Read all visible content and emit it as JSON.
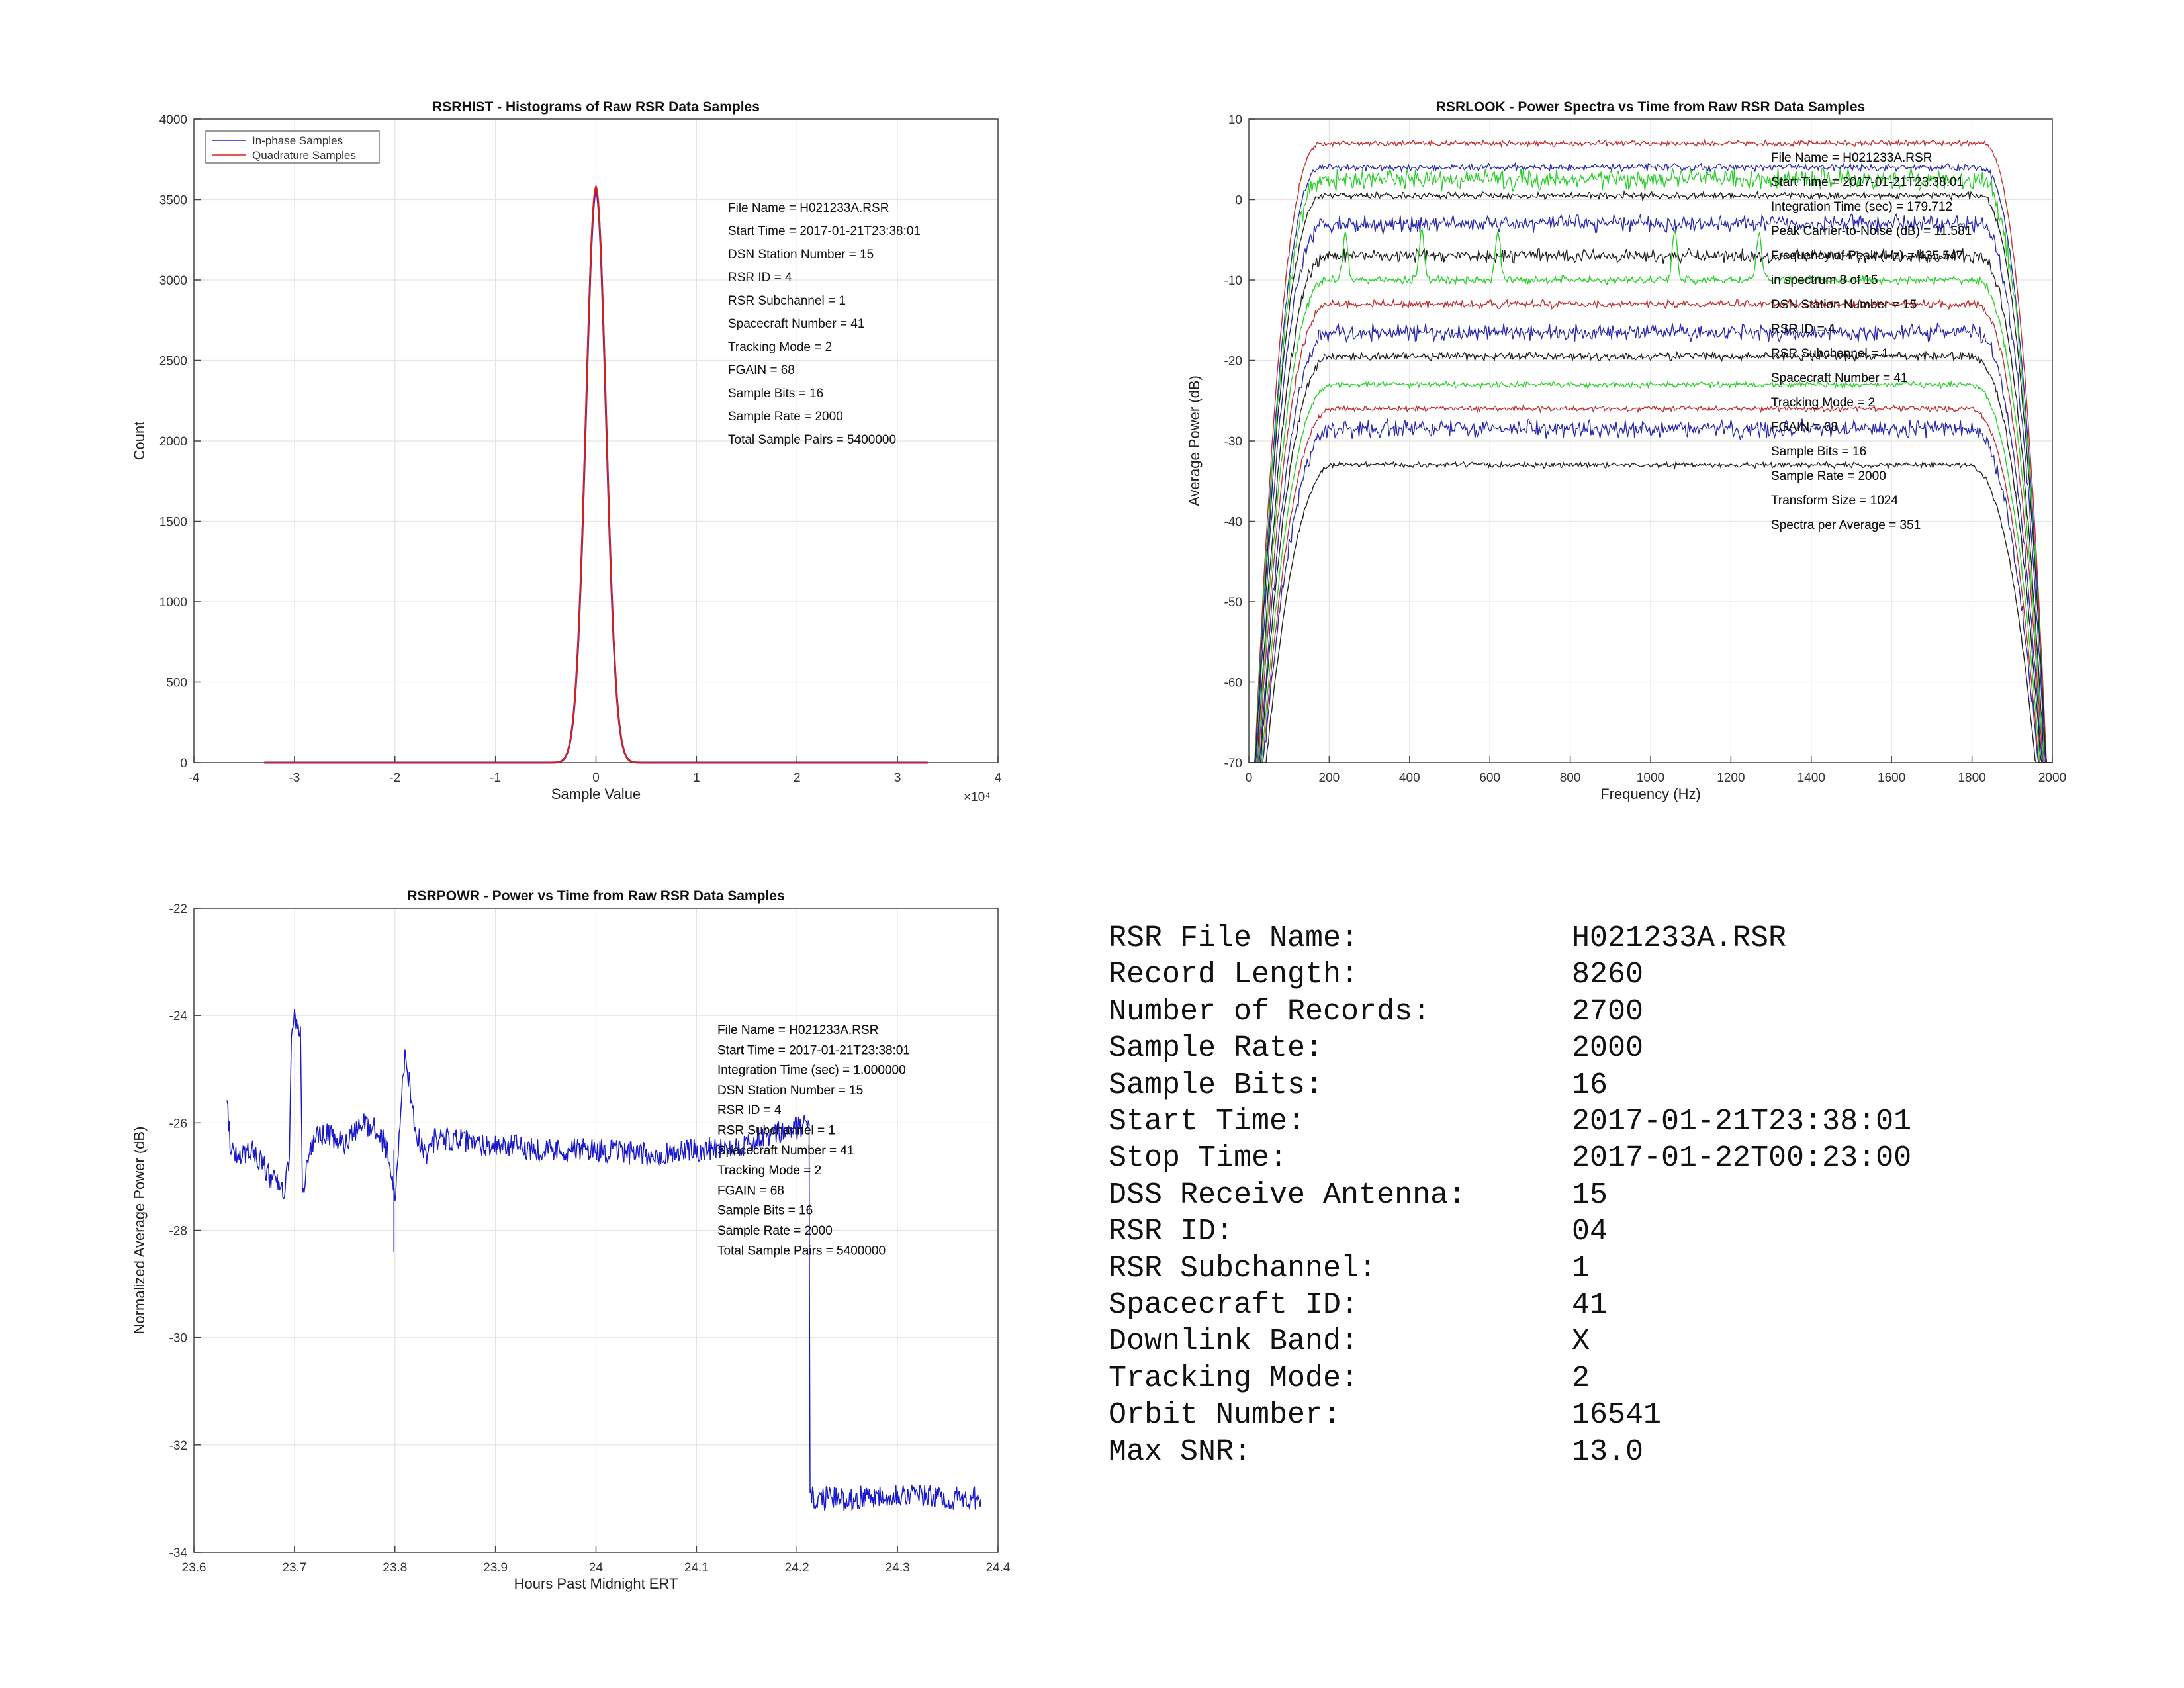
{
  "chart_data": [
    {
      "id": "rsrhist",
      "type": "line",
      "title": "RSRHIST - Histograms of Raw RSR Data Samples",
      "xlabel": "Sample Value",
      "ylabel": "Count",
      "x_multiplier": "×10⁴",
      "xlim": [
        -4,
        4
      ],
      "ylim": [
        0,
        4000
      ],
      "xticks": [
        -4,
        -3,
        -2,
        -1,
        0,
        1,
        2,
        3,
        4
      ],
      "yticks": [
        0,
        500,
        1000,
        1500,
        2000,
        2500,
        3000,
        3500,
        4000
      ],
      "grid": true,
      "legend": {
        "position": "top-left",
        "entries": [
          "In-phase Samples",
          "Quadrature Samples"
        ]
      },
      "series": [
        {
          "name": "In-phase Samples",
          "color": "#1f1fbf",
          "shape": "gaussian",
          "peak_x": 0,
          "peak_y": 3560,
          "sigma": 0.1
        },
        {
          "name": "Quadrature Samples",
          "color": "#d62020",
          "shape": "gaussian",
          "peak_x": 0,
          "peak_y": 3580,
          "sigma": 0.1
        }
      ],
      "annotations": [
        "File Name = H021233A.RSR",
        "Start Time = 2017-01-21T23:38:01",
        "DSN Station Number = 15",
        "RSR ID = 4",
        "RSR Subchannel = 1",
        "Spacecraft Number = 41",
        "Tracking Mode = 2",
        "FGAIN = 68",
        "Sample Bits = 16",
        "Sample Rate = 2000",
        "Total Sample Pairs = 5400000"
      ]
    },
    {
      "id": "rsrlook",
      "type": "line",
      "title": "RSRLOOK - Power Spectra vs Time from Raw RSR Data Samples",
      "xlabel": "Frequency (Hz)",
      "ylabel": "Average Power (dB)",
      "xlim": [
        0,
        2000
      ],
      "ylim": [
        -70,
        10
      ],
      "xticks": [
        0,
        200,
        400,
        600,
        800,
        1000,
        1200,
        1400,
        1600,
        1800,
        2000
      ],
      "yticks": [
        -70,
        -60,
        -50,
        -40,
        -30,
        -20,
        -10,
        0,
        10
      ],
      "grid": true,
      "spectra": [
        {
          "level": 7,
          "color": "#c03030",
          "ripple": 0.4
        },
        {
          "level": 4,
          "color": "#2a2ab0",
          "ripple": 0.5
        },
        {
          "level": 2.5,
          "color": "#2ad02a",
          "ripple": 1.5
        },
        {
          "level": 0.5,
          "color": "#222222",
          "ripple": 0.5
        },
        {
          "level": -3,
          "color": "#2a2ab0",
          "ripple": 1.2
        },
        {
          "level": -7,
          "color": "#222222",
          "ripple": 1.0
        },
        {
          "level": -10,
          "color": "#2ad02a",
          "ripple": 0.6
        },
        {
          "level": -13,
          "color": "#c03030",
          "ripple": 0.6
        },
        {
          "level": -16.5,
          "color": "#2a2ab0",
          "ripple": 1.2
        },
        {
          "level": -19.5,
          "color": "#222222",
          "ripple": 0.6
        },
        {
          "level": -23,
          "color": "#2ad02a",
          "ripple": 0.4
        },
        {
          "level": -26,
          "color": "#c03030",
          "ripple": 0.4
        },
        {
          "level": -28.5,
          "color": "#2a2ab0",
          "ripple": 1.3
        },
        {
          "level": -33,
          "color": "#222222",
          "ripple": 0.4
        }
      ],
      "annotations": [
        "File Name = H021233A.RSR",
        "Start Time = 2017-01-21T23:38:01",
        "Integration Time (sec) =   179.712",
        "Peak Carrier-to-Noise (dB) = 11.581",
        "Frequency of Peak (Hz) =  435.547",
        "  in spectrum  8  of  15",
        "DSN Station Number = 15",
        "RSR ID = 4",
        "RSR Subchannel = 1",
        "Spacecraft Number = 41",
        "Tracking Mode = 2",
        "FGAIN = 68",
        "Sample Bits = 16",
        "Sample Rate = 2000",
        "Transform Size = 1024",
        "Spectra per Average = 351"
      ]
    },
    {
      "id": "rsrpowr",
      "type": "line",
      "title": "RSRPOWR - Power vs Time from Raw RSR Data Samples",
      "xlabel": "Hours Past Midnight ERT",
      "ylabel": "Normalized Average Power (dB)",
      "xlim": [
        23.6,
        24.4
      ],
      "ylim": [
        -34,
        -22
      ],
      "xticks": [
        23.6,
        23.7,
        23.8,
        23.9,
        24,
        24.1,
        24.2,
        24.3,
        24.4
      ],
      "yticks": [
        -34,
        -32,
        -30,
        -28,
        -26,
        -24,
        -22
      ],
      "grid": true,
      "series": [
        {
          "color": "#1a1acc",
          "points": [
            [
              23.633,
              -25.5
            ],
            [
              23.636,
              -26.4
            ],
            [
              23.645,
              -26.6
            ],
            [
              23.66,
              -26.5
            ],
            [
              23.675,
              -27.0
            ],
            [
              23.69,
              -27.3
            ],
            [
              23.695,
              -26.6
            ],
            [
              23.697,
              -24.2
            ],
            [
              23.7,
              -24.1
            ],
            [
              23.703,
              -24.3
            ],
            [
              23.706,
              -24.2
            ],
            [
              23.708,
              -27.4
            ],
            [
              23.712,
              -26.8
            ],
            [
              23.72,
              -26.3
            ],
            [
              23.73,
              -26.2
            ],
            [
              23.74,
              -26.3
            ],
            [
              23.75,
              -26.4
            ],
            [
              23.76,
              -26.2
            ],
            [
              23.77,
              -26.0
            ],
            [
              23.78,
              -26.1
            ],
            [
              23.79,
              -26.4
            ],
            [
              23.795,
              -26.7
            ],
            [
              23.8,
              -27.5
            ],
            [
              23.805,
              -26.0
            ],
            [
              23.81,
              -24.7
            ],
            [
              23.815,
              -25.3
            ],
            [
              23.82,
              -26.1
            ],
            [
              23.83,
              -26.6
            ],
            [
              23.84,
              -26.3
            ],
            [
              23.86,
              -26.3
            ],
            [
              23.88,
              -26.4
            ],
            [
              23.9,
              -26.4
            ],
            [
              23.95,
              -26.5
            ],
            [
              24.0,
              -26.5
            ],
            [
              24.05,
              -26.6
            ],
            [
              24.1,
              -26.5
            ],
            [
              24.15,
              -26.4
            ],
            [
              24.18,
              -26.2
            ],
            [
              24.2,
              -26.1
            ],
            [
              24.212,
              -26.0
            ],
            [
              24.213,
              -33.0
            ],
            [
              24.25,
              -33.0
            ],
            [
              24.3,
              -32.9
            ],
            [
              24.35,
              -33.0
            ],
            [
              24.383,
              -33.0
            ]
          ]
        }
      ],
      "annotations": [
        "File Name = H021233A.RSR",
        "Start Time = 2017-01-21T23:38:01",
        "Integration Time (sec) = 1.000000",
        "DSN Station Number = 15",
        "RSR ID = 4",
        "RSR Subchannel = 1",
        "Spacecraft Number = 41",
        "Tracking Mode = 2",
        "FGAIN = 68",
        "Sample Bits = 16",
        "Sample Rate = 2000",
        "Total Sample Pairs = 5400000"
      ]
    }
  ],
  "summary": [
    {
      "key": "RSR File Name:",
      "value": "H021233A.RSR"
    },
    {
      "key": "Record Length:",
      "value": "8260"
    },
    {
      "key": "Number of Records:",
      "value": "2700"
    },
    {
      "key": "Sample Rate:",
      "value": "2000"
    },
    {
      "key": "Sample Bits:",
      "value": "16"
    },
    {
      "key": "Start Time:",
      "value": "2017-01-21T23:38:01"
    },
    {
      "key": "Stop Time:",
      "value": "2017-01-22T00:23:00"
    },
    {
      "key": "DSS Receive Antenna:",
      "value": "15"
    },
    {
      "key": "RSR ID:",
      "value": "04"
    },
    {
      "key": "RSR Subchannel:",
      "value": "1"
    },
    {
      "key": "Spacecraft ID:",
      "value": "41"
    },
    {
      "key": "Downlink Band:",
      "value": "X"
    },
    {
      "key": "Tracking Mode:",
      "value": "2"
    },
    {
      "key": "Orbit Number:",
      "value": "16541"
    },
    {
      "key": "Max SNR:",
      "value": "13.0"
    }
  ]
}
